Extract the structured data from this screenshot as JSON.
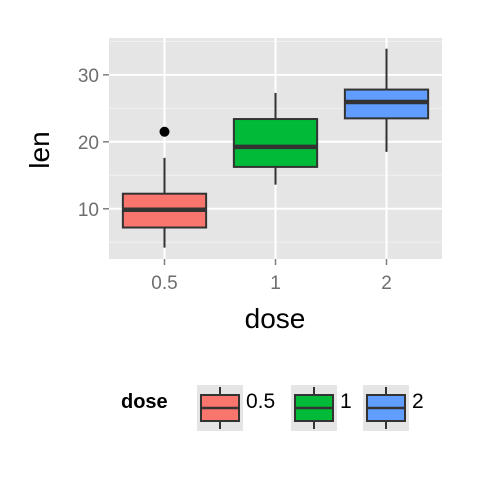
{
  "chart_data": {
    "type": "box",
    "xlabel": "dose",
    "ylabel": "len",
    "categories": [
      "0.5",
      "1",
      "2"
    ],
    "ylim": [
      2.5,
      35.5
    ],
    "yticks": [
      10,
      20,
      30
    ],
    "grid": true,
    "legend": {
      "title": "dose",
      "position": "bottom"
    },
    "boxes": [
      {
        "category": "0.5",
        "min": 4.2,
        "q1": 7.2,
        "median": 9.85,
        "q3": 12.25,
        "max": 17.6,
        "outliers": [
          21.5
        ],
        "color": "#F8766D"
      },
      {
        "category": "1",
        "min": 13.6,
        "q1": 16.25,
        "median": 19.25,
        "q3": 23.4,
        "max": 27.3,
        "outliers": [],
        "color": "#00BA38"
      },
      {
        "category": "2",
        "min": 18.5,
        "q1": 23.5,
        "median": 25.95,
        "q3": 27.8,
        "max": 33.9,
        "outliers": [],
        "color": "#619CFF"
      }
    ]
  }
}
